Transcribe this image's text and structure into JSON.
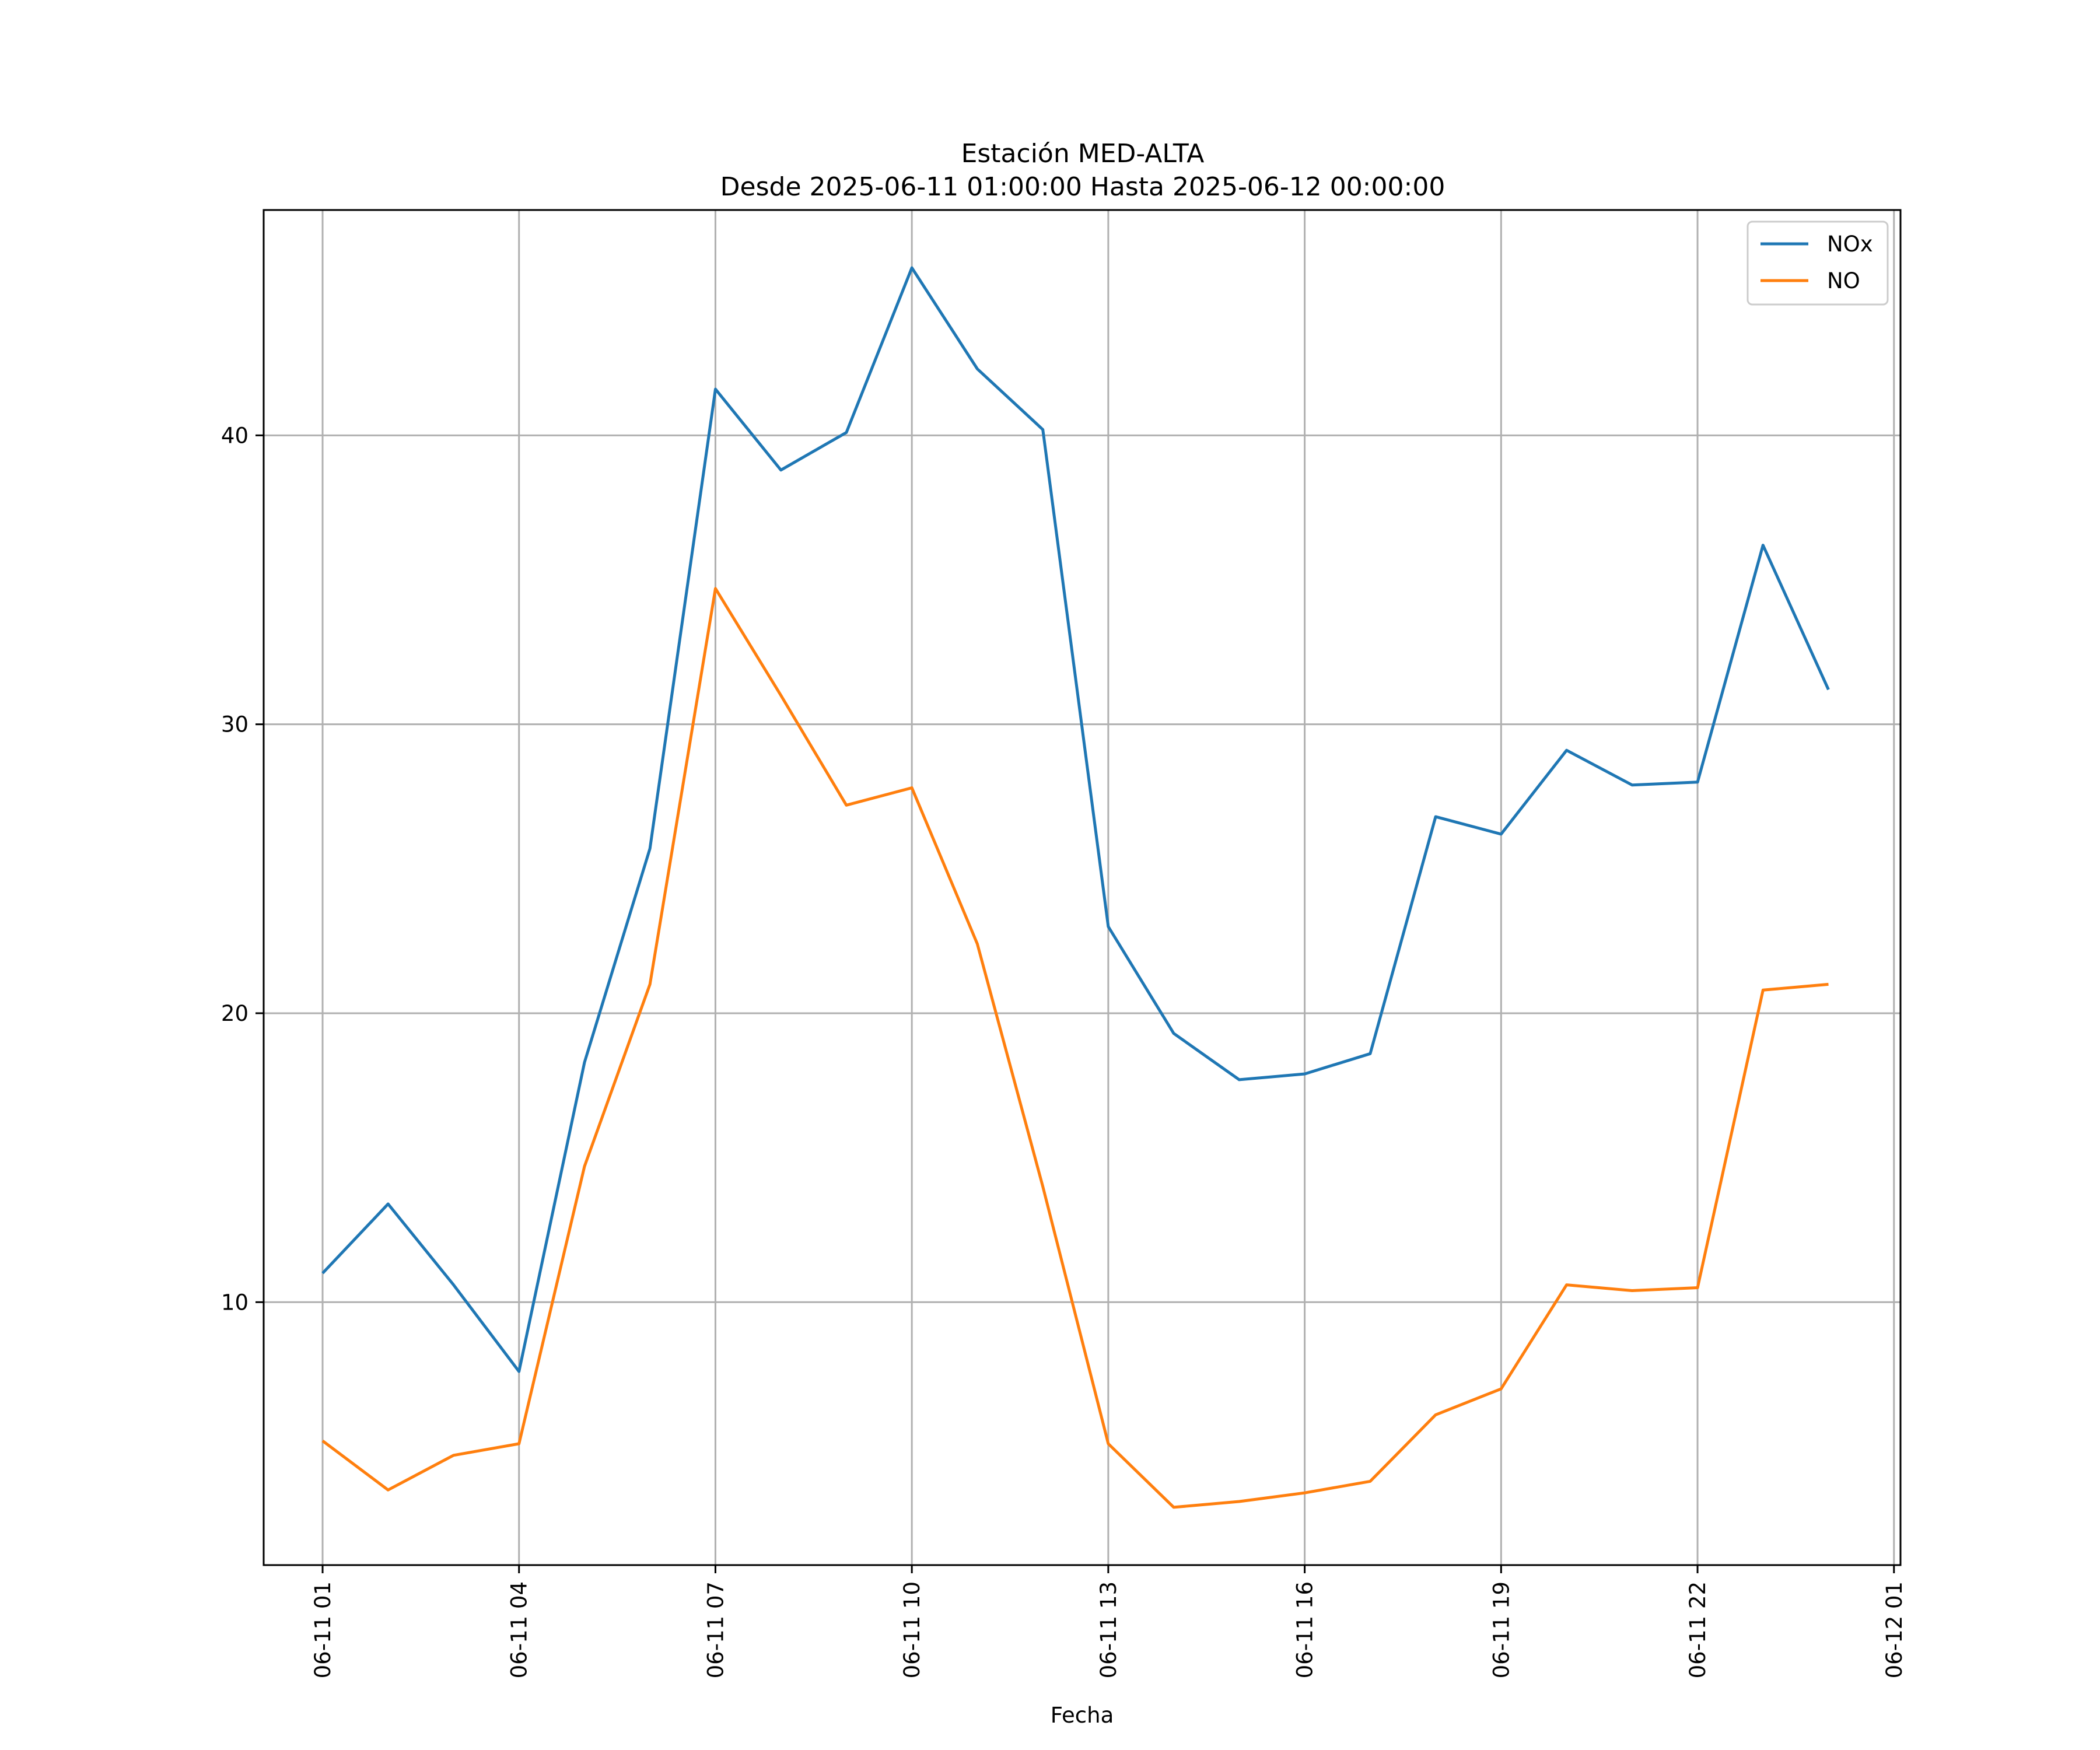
{
  "chart_data": {
    "type": "line",
    "title": "Estación MED-ALTA",
    "subtitle": "Desde 2025-06-11 01:00:00 Hasta 2025-06-12 00:00:00",
    "xlabel": "Fecha",
    "ylabel": "",
    "x": [
      "06-11 01",
      "06-11 02",
      "06-11 03",
      "06-11 04",
      "06-11 05",
      "06-11 06",
      "06-11 07",
      "06-11 08",
      "06-11 09",
      "06-11 10",
      "06-11 11",
      "06-11 12",
      "06-11 13",
      "06-11 14",
      "06-11 15",
      "06-11 16",
      "06-11 17",
      "06-11 18",
      "06-11 19",
      "06-11 20",
      "06-11 21",
      "06-11 22",
      "06-11 23",
      "06-12 00"
    ],
    "xlim": [
      0.1,
      25.1
    ],
    "x_ticks": [
      {
        "label": "06-11 01",
        "hour": 1
      },
      {
        "label": "06-11 04",
        "hour": 4
      },
      {
        "label": "06-11 07",
        "hour": 7
      },
      {
        "label": "06-11 10",
        "hour": 10
      },
      {
        "label": "06-11 13",
        "hour": 13
      },
      {
        "label": "06-11 16",
        "hour": 16
      },
      {
        "label": "06-11 19",
        "hour": 19
      },
      {
        "label": "06-11 22",
        "hour": 22
      },
      {
        "label": "06-12 01",
        "hour": 25
      }
    ],
    "ylim": [
      0.9,
      47.8
    ],
    "y_ticks": [
      10,
      20,
      30,
      40
    ],
    "grid": true,
    "legend": "top-right",
    "series": [
      {
        "name": "NOx",
        "color": "#1f77b4",
        "values": [
          11.0,
          13.4,
          10.6,
          7.6,
          18.3,
          25.7,
          41.6,
          38.8,
          40.1,
          45.8,
          42.3,
          40.2,
          23.0,
          19.3,
          17.7,
          17.9,
          18.6,
          26.8,
          26.2,
          29.1,
          27.9,
          28.0,
          36.2,
          31.2
        ]
      },
      {
        "name": "NO",
        "color": "#ff7f0e",
        "values": [
          5.2,
          3.5,
          4.7,
          5.1,
          14.7,
          21.0,
          34.7,
          31.0,
          27.2,
          27.8,
          22.4,
          14.0,
          5.1,
          2.9,
          3.1,
          3.4,
          3.8,
          6.1,
          7.0,
          10.6,
          10.4,
          10.5,
          20.8,
          21.0
        ]
      }
    ]
  }
}
